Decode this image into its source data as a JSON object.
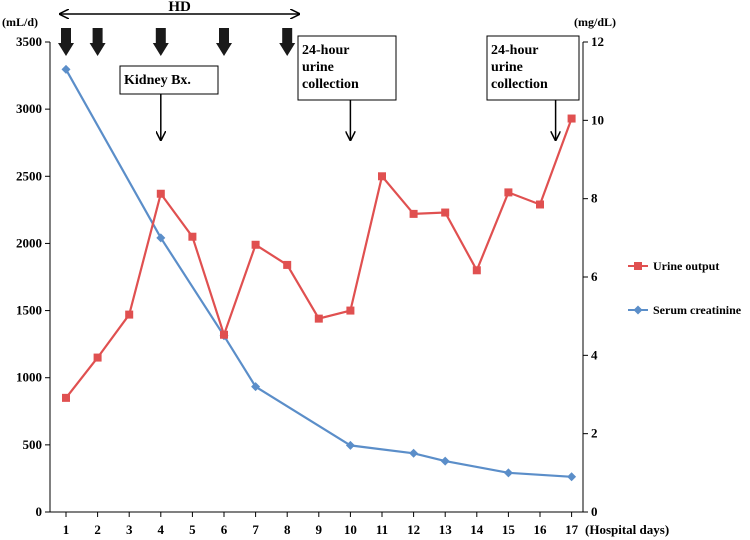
{
  "chart_data": {
    "type": "line",
    "title": "",
    "x_label": "(Hospital days)",
    "y_left_unit": "(mL/d)",
    "y_right_unit": "(mg/dL)",
    "x": [
      1,
      2,
      3,
      4,
      5,
      6,
      7,
      8,
      9,
      10,
      11,
      12,
      13,
      14,
      15,
      16,
      17
    ],
    "y_left_range": [
      0,
      3500
    ],
    "y_left_ticks": [
      0,
      500,
      1000,
      1500,
      2000,
      2500,
      3000,
      3500
    ],
    "y_right_range": [
      0,
      12
    ],
    "y_right_ticks": [
      0,
      2,
      4,
      6,
      8,
      10,
      12
    ],
    "series": [
      {
        "name": "Urine output",
        "axis": "left",
        "color": "#e05050",
        "marker": "square",
        "x": [
          1,
          2,
          3,
          4,
          5,
          6,
          7,
          8,
          9,
          10,
          11,
          12,
          13,
          14,
          15,
          16,
          17
        ],
        "values": [
          850,
          1150,
          1470,
          2370,
          2050,
          1320,
          1990,
          1840,
          1440,
          1500,
          2500,
          2220,
          2230,
          1800,
          2380,
          2290,
          2930
        ]
      },
      {
        "name": "Serum creatinine",
        "axis": "right",
        "color": "#5b8ec9",
        "marker": "diamond",
        "x": [
          1,
          4,
          6,
          7,
          10,
          12,
          13,
          15,
          17
        ],
        "values": [
          11.3,
          7.0,
          4.5,
          3.2,
          1.7,
          1.5,
          1.3,
          1.0,
          0.9
        ]
      }
    ],
    "annotations": {
      "hd": {
        "label": "HD",
        "from_day": 1,
        "to_day": 8,
        "arrow_days": [
          1,
          2,
          4,
          6,
          8
        ]
      },
      "callouts": [
        {
          "label_lines": [
            "Kidney Bx."
          ],
          "day": 4
        },
        {
          "label_lines": [
            "24-hour",
            "urine",
            "collection"
          ],
          "day": 10
        },
        {
          "label_lines": [
            "24-hour",
            "urine",
            "collection"
          ],
          "day": 17
        }
      ]
    }
  }
}
